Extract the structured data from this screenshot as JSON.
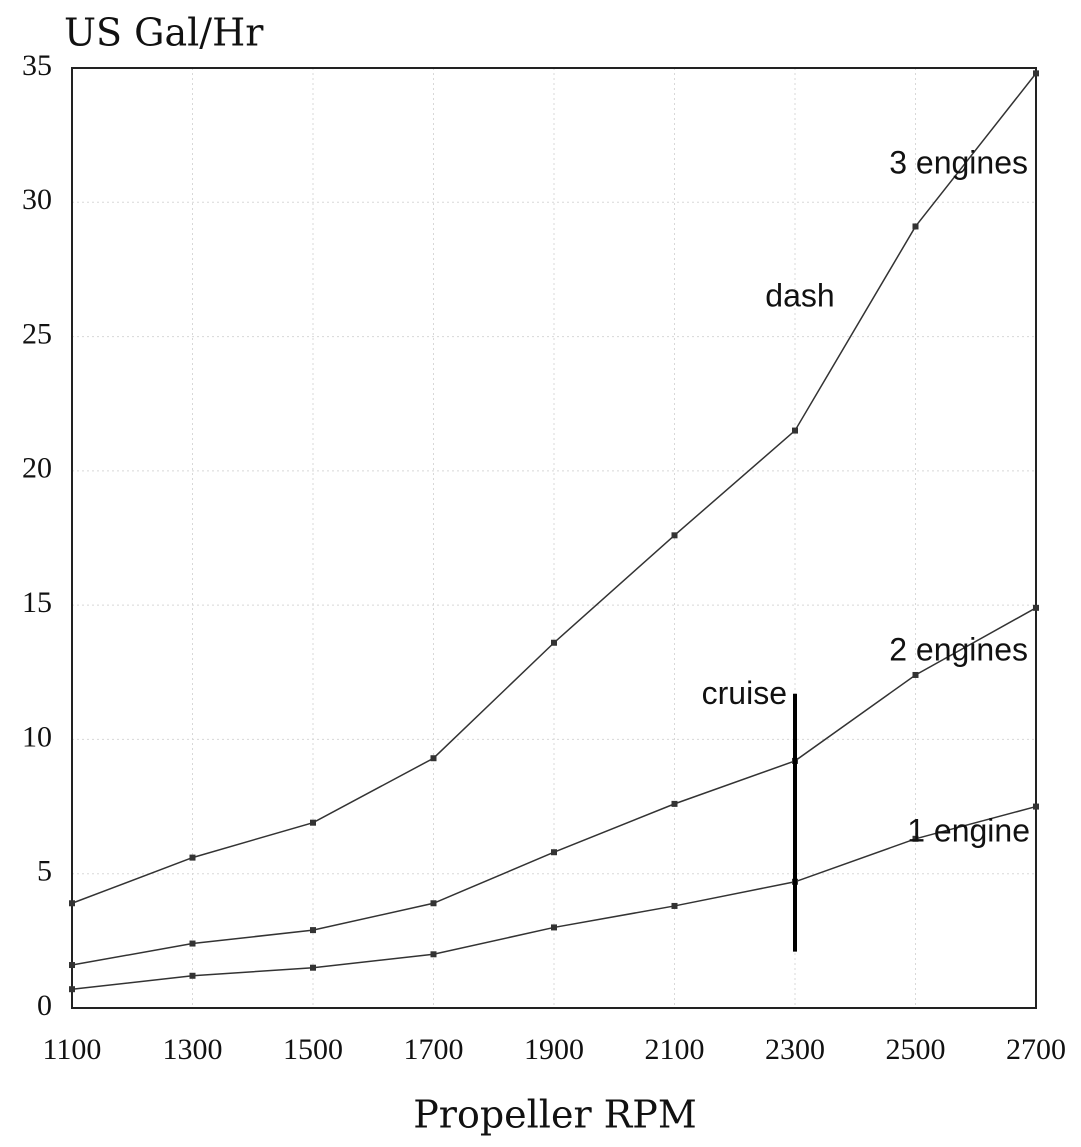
{
  "chart_data": {
    "type": "line",
    "title": "US Gal/Hr",
    "x_label": "Propeller RPM",
    "x": [
      1100,
      1300,
      1500,
      1700,
      1900,
      2100,
      2300,
      2500,
      2700
    ],
    "series": [
      {
        "name": "3 engines",
        "color": "#333333",
        "values": [
          3.9,
          5.6,
          6.9,
          9.3,
          13.6,
          17.6,
          21.5,
          29.1,
          34.8
        ]
      },
      {
        "name": "2 engines",
        "color": "#333333",
        "values": [
          1.6,
          2.4,
          2.9,
          3.9,
          5.8,
          7.6,
          9.2,
          12.4,
          14.9
        ]
      },
      {
        "name": "1 engine",
        "color": "#333333",
        "values": [
          0.7,
          1.2,
          1.5,
          2.0,
          3.0,
          3.8,
          4.7,
          6.3,
          7.5
        ]
      }
    ],
    "annotations": [
      {
        "text": "dash"
      },
      {
        "text": "cruise",
        "x": 2300,
        "y_range": [
          2.1,
          11.7
        ]
      }
    ],
    "xlim": [
      1100,
      2700
    ],
    "xticks": [
      1100,
      1300,
      1500,
      1700,
      1900,
      2100,
      2300,
      2500,
      2700
    ],
    "ylim": [
      0,
      35
    ],
    "yticks": [
      0,
      5,
      10,
      15,
      20,
      25,
      30,
      35
    ],
    "grid": true
  }
}
